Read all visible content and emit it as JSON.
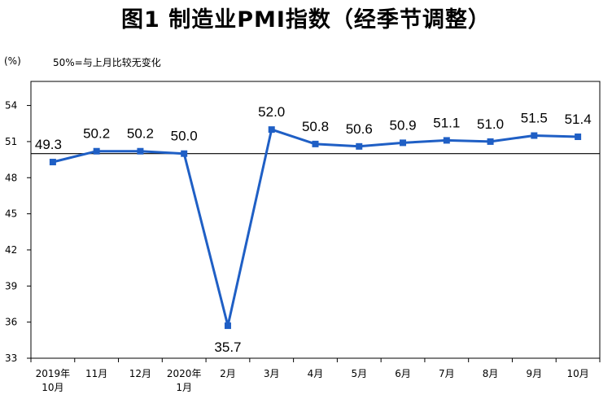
{
  "title": "图1 制造业PMI指数（经季节调整）",
  "unit": "(%)",
  "note": "50%=与上月比较无变化",
  "chart_data": {
    "type": "line",
    "title": "图1 制造业PMI指数（经季节调整）",
    "ylabel": "(%)",
    "xlabel": "",
    "categories": [
      [
        "2019年",
        "10月"
      ],
      [
        "11月"
      ],
      [
        "12月"
      ],
      [
        "2020年",
        "1月"
      ],
      [
        "2月"
      ],
      [
        "3月"
      ],
      [
        "4月"
      ],
      [
        "5月"
      ],
      [
        "6月"
      ],
      [
        "7月"
      ],
      [
        "8月"
      ],
      [
        "9月"
      ],
      [
        "10月"
      ]
    ],
    "values": [
      49.3,
      50.2,
      50.2,
      50.0,
      35.7,
      52.0,
      50.8,
      50.6,
      50.9,
      51.1,
      51.0,
      51.5,
      51.4
    ],
    "labels": [
      "49.3",
      "50.2",
      "50.2",
      "50.0",
      "35.7",
      "52.0",
      "50.8",
      "50.6",
      "50.9",
      "51.1",
      "51.0",
      "51.5",
      "51.4"
    ],
    "yticks": [
      33,
      36,
      39,
      42,
      45,
      48,
      51,
      54
    ],
    "ylim": [
      33,
      56
    ],
    "reference_line": 50,
    "grid": false,
    "series_color": "#1f5fc5"
  }
}
